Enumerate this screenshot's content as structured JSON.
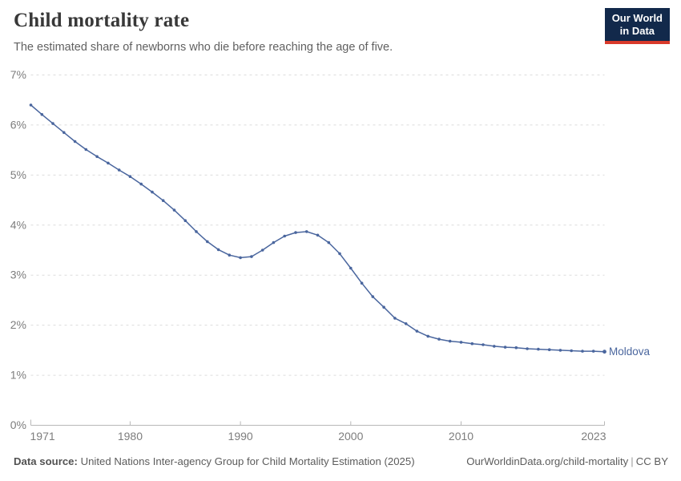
{
  "header": {
    "title": "Child mortality rate",
    "subtitle": "The estimated share of newborns who die before reaching the age of five.",
    "logo_line1": "Our World",
    "logo_line2": "in Data"
  },
  "footer": {
    "source_label": "Data source:",
    "source_text": "United Nations Inter-agency Group for Child Mortality Estimation (2025)",
    "site_link": "OurWorldinData.org/child-mortality",
    "separator": "|",
    "license": "CC BY"
  },
  "colors": {
    "line": "#4a669e",
    "grid": "#dcdcdc",
    "axis": "#b8b8b8",
    "tick_label": "#7d7d7d",
    "logo_bg": "#12294b",
    "logo_red": "#d93a2b"
  },
  "chart_data": {
    "type": "line",
    "title": "Child mortality rate",
    "subtitle": "The estimated share of newborns who die before reaching the age of five.",
    "entity": "Moldova",
    "y_unit": "%",
    "xlabel": "",
    "ylabel": "",
    "grid": true,
    "legend_position": "end-of-line-label",
    "xlim": [
      1971,
      2023
    ],
    "ylim": [
      0,
      7
    ],
    "x_ticks": [
      1971,
      1980,
      1990,
      2000,
      2010,
      2023
    ],
    "y_ticks": [
      0,
      1,
      2,
      3,
      4,
      5,
      6,
      7
    ],
    "years": [
      1971,
      1972,
      1973,
      1974,
      1975,
      1976,
      1977,
      1978,
      1979,
      1980,
      1981,
      1982,
      1983,
      1984,
      1985,
      1986,
      1987,
      1988,
      1989,
      1990,
      1991,
      1992,
      1993,
      1994,
      1995,
      1996,
      1997,
      1998,
      1999,
      2000,
      2001,
      2002,
      2003,
      2004,
      2005,
      2006,
      2007,
      2008,
      2009,
      2010,
      2011,
      2012,
      2013,
      2014,
      2015,
      2016,
      2017,
      2018,
      2019,
      2020,
      2021,
      2022,
      2023
    ],
    "values": [
      6.4,
      6.21,
      6.03,
      5.85,
      5.67,
      5.51,
      5.37,
      5.24,
      5.1,
      4.97,
      4.82,
      4.66,
      4.49,
      4.3,
      4.09,
      3.87,
      3.67,
      3.51,
      3.4,
      3.35,
      3.37,
      3.5,
      3.65,
      3.78,
      3.85,
      3.87,
      3.8,
      3.65,
      3.43,
      3.14,
      2.84,
      2.57,
      2.36,
      2.14,
      2.03,
      1.88,
      1.78,
      1.72,
      1.68,
      1.66,
      1.63,
      1.61,
      1.58,
      1.56,
      1.55,
      1.53,
      1.52,
      1.51,
      1.5,
      1.49,
      1.48,
      1.48,
      1.47
    ]
  }
}
